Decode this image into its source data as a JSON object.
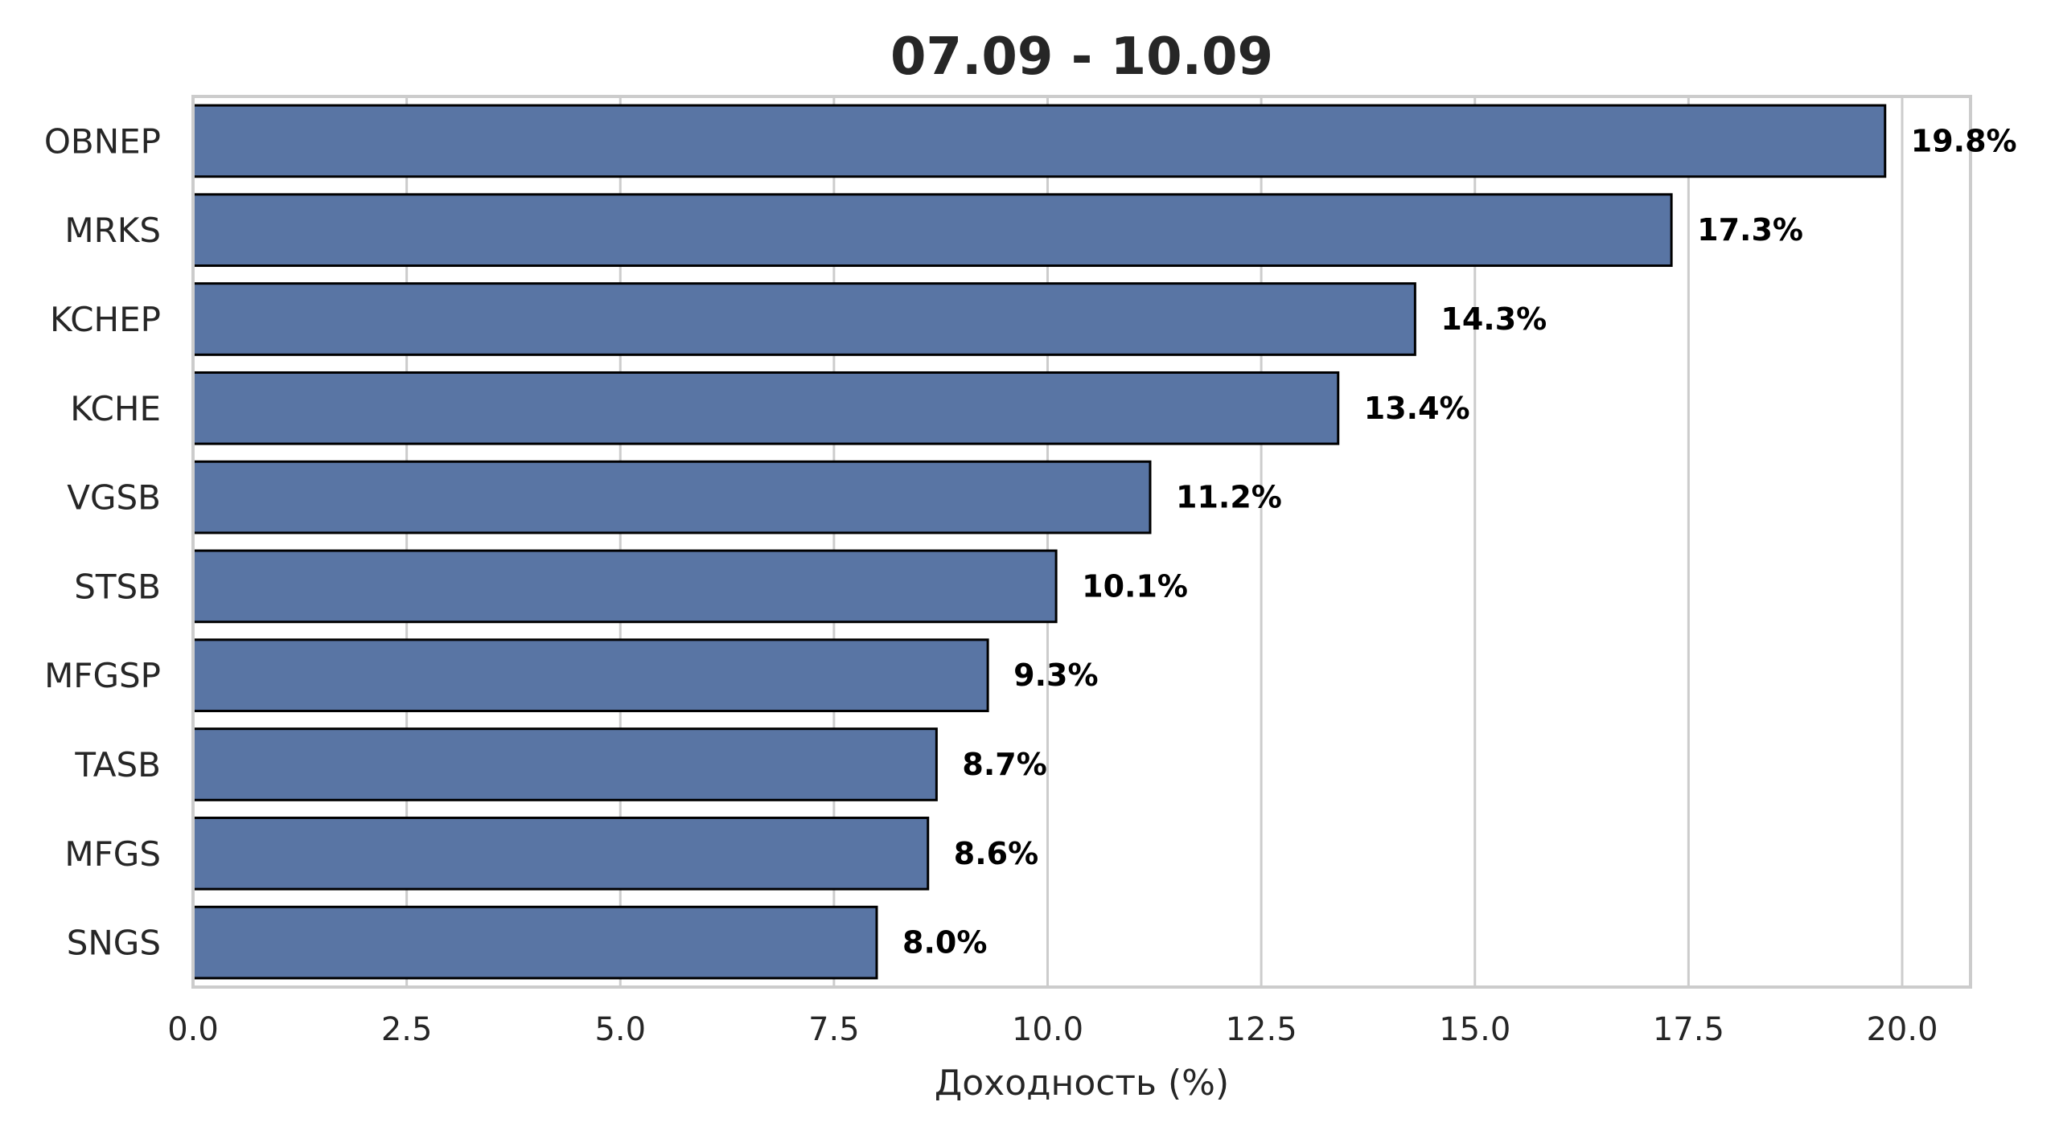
{
  "chart_data": {
    "type": "bar",
    "orientation": "horizontal",
    "title": "07.09 - 10.09",
    "xlabel": "Доходность (%)",
    "ylabel": "",
    "categories": [
      "OBNEP",
      "MRKS",
      "KCHEP",
      "KCHE",
      "VGSB",
      "STSB",
      "MFGSP",
      "TASB",
      "MFGS",
      "SNGS"
    ],
    "values": [
      19.8,
      17.3,
      14.3,
      13.4,
      11.2,
      10.1,
      9.3,
      8.7,
      8.6,
      8.0
    ],
    "data_labels": [
      "19.8%",
      "17.3%",
      "14.3%",
      "13.4%",
      "11.2%",
      "10.1%",
      "9.3%",
      "8.7%",
      "8.6%",
      "8.0%"
    ],
    "xlim": [
      0,
      20.8
    ],
    "xticks": [
      0.0,
      2.5,
      5.0,
      7.5,
      10.0,
      12.5,
      15.0,
      17.5,
      20.0
    ],
    "xtick_labels": [
      "0.0",
      "2.5",
      "5.0",
      "7.5",
      "10.0",
      "12.5",
      "15.0",
      "17.5",
      "20.0"
    ],
    "grid": "vertical",
    "bar_color": "#5975a4",
    "bar_edge_color": "#000000",
    "grid_color": "#cccccc"
  }
}
